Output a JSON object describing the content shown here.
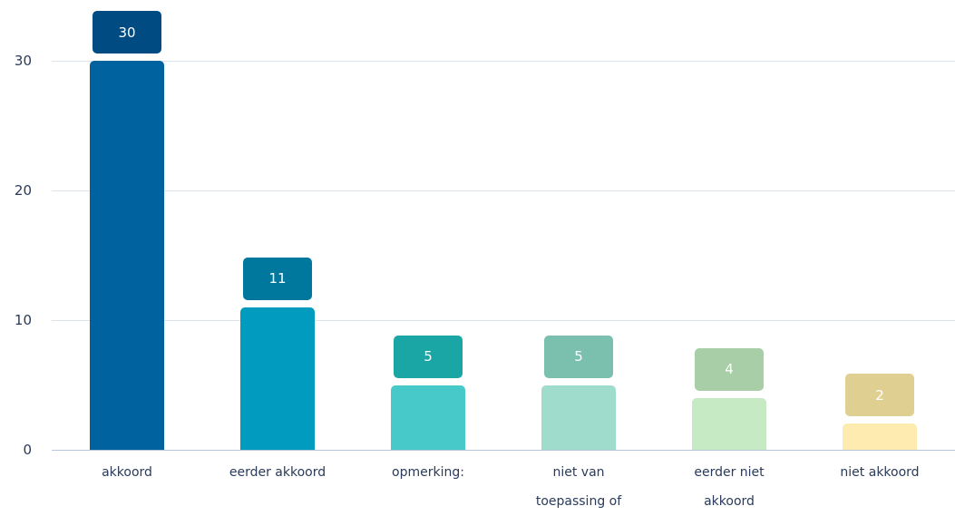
{
  "chart_data": {
    "type": "bar",
    "categories": [
      "akkoord",
      "eerder akkoord",
      "opmerking:",
      "niet van toepassing of",
      "eerder niet akkoord",
      "niet akkoord"
    ],
    "values": [
      30,
      11,
      5,
      5,
      4,
      2
    ],
    "colors": [
      "#00629e",
      "#009bbf",
      "#48c9c9",
      "#9fdccc",
      "#c6eac3",
      "#fdebb0"
    ],
    "label_colors": [
      "#004b82",
      "#00789e",
      "#1aa6a5",
      "#7bbfae",
      "#a7cea7",
      "#dfcf90"
    ],
    "ylim": [
      0,
      30
    ],
    "yticks": [
      0,
      10,
      20,
      30
    ],
    "grid": true
  }
}
